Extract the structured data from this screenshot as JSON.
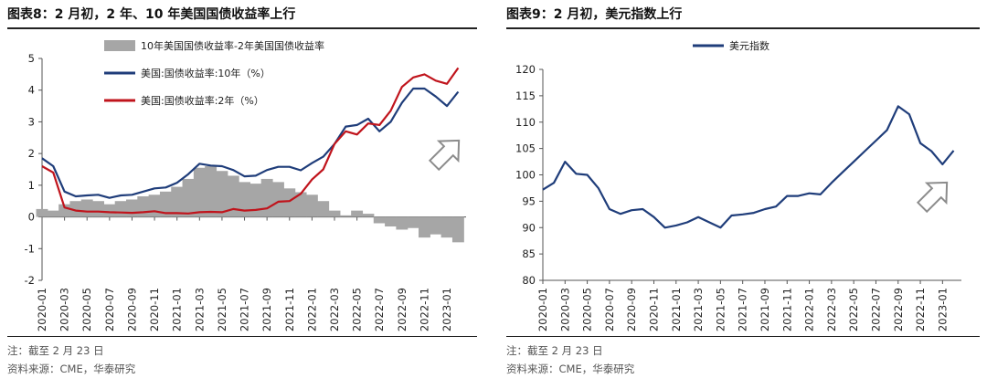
{
  "left": {
    "title": "图表8：2 月初，2 年、10 年美国国债收益率上行",
    "note": "注：截至 2 月 23 日",
    "source": "资料来源：CME，华泰研究"
  },
  "right": {
    "title": "图表9：2 月初，美元指数上行",
    "note": "注：截至 2 月 23 日",
    "source": "资料来源：CME，华泰研究"
  },
  "chart_data": [
    {
      "type": "line",
      "title": "",
      "xlabel": "",
      "ylabel": "",
      "ylim": [
        -2,
        5
      ],
      "yticks": [
        "-2",
        "-1",
        "0",
        "1",
        "2",
        "3",
        "4",
        "5"
      ],
      "xticks": [
        "2020-01",
        "2020-03",
        "2020-05",
        "2020-07",
        "2020-09",
        "2020-11",
        "2021-01",
        "2021-03",
        "2021-05",
        "2021-07",
        "2021-09",
        "2021-11",
        "2022-01",
        "2022-03",
        "2022-05",
        "2022-07",
        "2022-09",
        "2022-11",
        "2023-01"
      ],
      "legend_position": "top-left",
      "grid": false,
      "annotation": "up-arrow",
      "series": [
        {
          "name": "10年美国国债收益率-2年美国国债收益率",
          "kind": "area",
          "color": "#a6a6a6",
          "x": [
            "2020-01",
            "2020-02",
            "2020-03",
            "2020-04",
            "2020-05",
            "2020-06",
            "2020-07",
            "2020-08",
            "2020-09",
            "2020-10",
            "2020-11",
            "2020-12",
            "2021-01",
            "2021-02",
            "2021-03",
            "2021-04",
            "2021-05",
            "2021-06",
            "2021-07",
            "2021-08",
            "2021-09",
            "2021-10",
            "2021-11",
            "2021-12",
            "2022-01",
            "2022-02",
            "2022-03",
            "2022-04",
            "2022-05",
            "2022-06",
            "2022-07",
            "2022-08",
            "2022-09",
            "2022-10",
            "2022-11",
            "2022-12",
            "2023-01",
            "2023-02"
          ],
          "values": [
            0.25,
            0.2,
            0.4,
            0.5,
            0.55,
            0.5,
            0.4,
            0.5,
            0.55,
            0.65,
            0.7,
            0.8,
            0.95,
            1.2,
            1.55,
            1.6,
            1.45,
            1.3,
            1.1,
            1.05,
            1.2,
            1.1,
            0.9,
            0.78,
            0.7,
            0.5,
            0.2,
            0.05,
            0.2,
            0.1,
            -0.2,
            -0.3,
            -0.4,
            -0.35,
            -0.65,
            -0.55,
            -0.65,
            -0.8
          ]
        },
        {
          "name": "美国:国债收益率:10年（%）",
          "kind": "line",
          "color": "#1f3d7a",
          "x": [
            "2020-01",
            "2020-02",
            "2020-03",
            "2020-04",
            "2020-05",
            "2020-06",
            "2020-07",
            "2020-08",
            "2020-09",
            "2020-10",
            "2020-11",
            "2020-12",
            "2021-01",
            "2021-02",
            "2021-03",
            "2021-04",
            "2021-05",
            "2021-06",
            "2021-07",
            "2021-08",
            "2021-09",
            "2021-10",
            "2021-11",
            "2021-12",
            "2022-01",
            "2022-02",
            "2022-03",
            "2022-04",
            "2022-05",
            "2022-06",
            "2022-07",
            "2022-08",
            "2022-09",
            "2022-10",
            "2022-11",
            "2022-12",
            "2023-01",
            "2023-02"
          ],
          "values": [
            1.85,
            1.6,
            0.8,
            0.65,
            0.68,
            0.7,
            0.6,
            0.68,
            0.7,
            0.8,
            0.9,
            0.93,
            1.08,
            1.35,
            1.68,
            1.62,
            1.6,
            1.48,
            1.28,
            1.3,
            1.48,
            1.58,
            1.58,
            1.47,
            1.7,
            1.9,
            2.3,
            2.85,
            2.9,
            3.1,
            2.7,
            3.0,
            3.6,
            4.05,
            4.05,
            3.8,
            3.5,
            3.95
          ]
        },
        {
          "name": "美国:国债收益率:2年（%）",
          "kind": "line",
          "color": "#c0141c",
          "x": [
            "2020-01",
            "2020-02",
            "2020-03",
            "2020-04",
            "2020-05",
            "2020-06",
            "2020-07",
            "2020-08",
            "2020-09",
            "2020-10",
            "2020-11",
            "2020-12",
            "2021-01",
            "2021-02",
            "2021-03",
            "2021-04",
            "2021-05",
            "2021-06",
            "2021-07",
            "2021-08",
            "2021-09",
            "2021-10",
            "2021-11",
            "2021-12",
            "2022-01",
            "2022-02",
            "2022-03",
            "2022-04",
            "2022-05",
            "2022-06",
            "2022-07",
            "2022-08",
            "2022-09",
            "2022-10",
            "2022-11",
            "2022-12",
            "2023-01",
            "2023-02"
          ],
          "values": [
            1.6,
            1.4,
            0.3,
            0.2,
            0.17,
            0.17,
            0.15,
            0.14,
            0.13,
            0.15,
            0.18,
            0.12,
            0.12,
            0.11,
            0.15,
            0.16,
            0.15,
            0.25,
            0.2,
            0.22,
            0.27,
            0.48,
            0.5,
            0.73,
            1.18,
            1.5,
            2.3,
            2.7,
            2.6,
            2.95,
            2.9,
            3.35,
            4.1,
            4.4,
            4.5,
            4.3,
            4.2,
            4.7
          ]
        }
      ]
    },
    {
      "type": "line",
      "title": "",
      "xlabel": "",
      "ylabel": "",
      "ylim": [
        80,
        120
      ],
      "yticks": [
        "80",
        "85",
        "90",
        "95",
        "100",
        "105",
        "110",
        "115",
        "120"
      ],
      "xticks": [
        "2020-01",
        "2020-03",
        "2020-05",
        "2020-07",
        "2020-09",
        "2020-11",
        "2021-01",
        "2021-03",
        "2021-05",
        "2021-07",
        "2021-09",
        "2021-11",
        "2022-01",
        "2022-03",
        "2022-05",
        "2022-07",
        "2022-09",
        "2022-11",
        "2023-01"
      ],
      "legend_position": "top-center",
      "grid": false,
      "annotation": "up-arrow",
      "series": [
        {
          "name": "美元指数",
          "kind": "line",
          "color": "#1f3d7a",
          "x": [
            "2020-01",
            "2020-02",
            "2020-03",
            "2020-04",
            "2020-05",
            "2020-06",
            "2020-07",
            "2020-08",
            "2020-09",
            "2020-10",
            "2020-11",
            "2020-12",
            "2021-01",
            "2021-02",
            "2021-03",
            "2021-04",
            "2021-05",
            "2021-06",
            "2021-07",
            "2021-08",
            "2021-09",
            "2021-10",
            "2021-11",
            "2021-12",
            "2022-01",
            "2022-02",
            "2022-03",
            "2022-04",
            "2022-05",
            "2022-06",
            "2022-07",
            "2022-08",
            "2022-09",
            "2022-10",
            "2022-11",
            "2022-12",
            "2023-01",
            "2023-02"
          ],
          "values": [
            97.2,
            98.5,
            102.5,
            100.2,
            100.0,
            97.5,
            93.5,
            92.6,
            93.3,
            93.5,
            92.0,
            90.0,
            90.4,
            91.0,
            92.0,
            91.0,
            90.0,
            92.3,
            92.5,
            92.8,
            93.5,
            94.0,
            96.0,
            96.0,
            96.5,
            96.3,
            98.5,
            100.5,
            102.5,
            104.5,
            106.5,
            108.5,
            113.0,
            111.5,
            106.0,
            104.5,
            102.0,
            104.6
          ]
        }
      ]
    }
  ]
}
